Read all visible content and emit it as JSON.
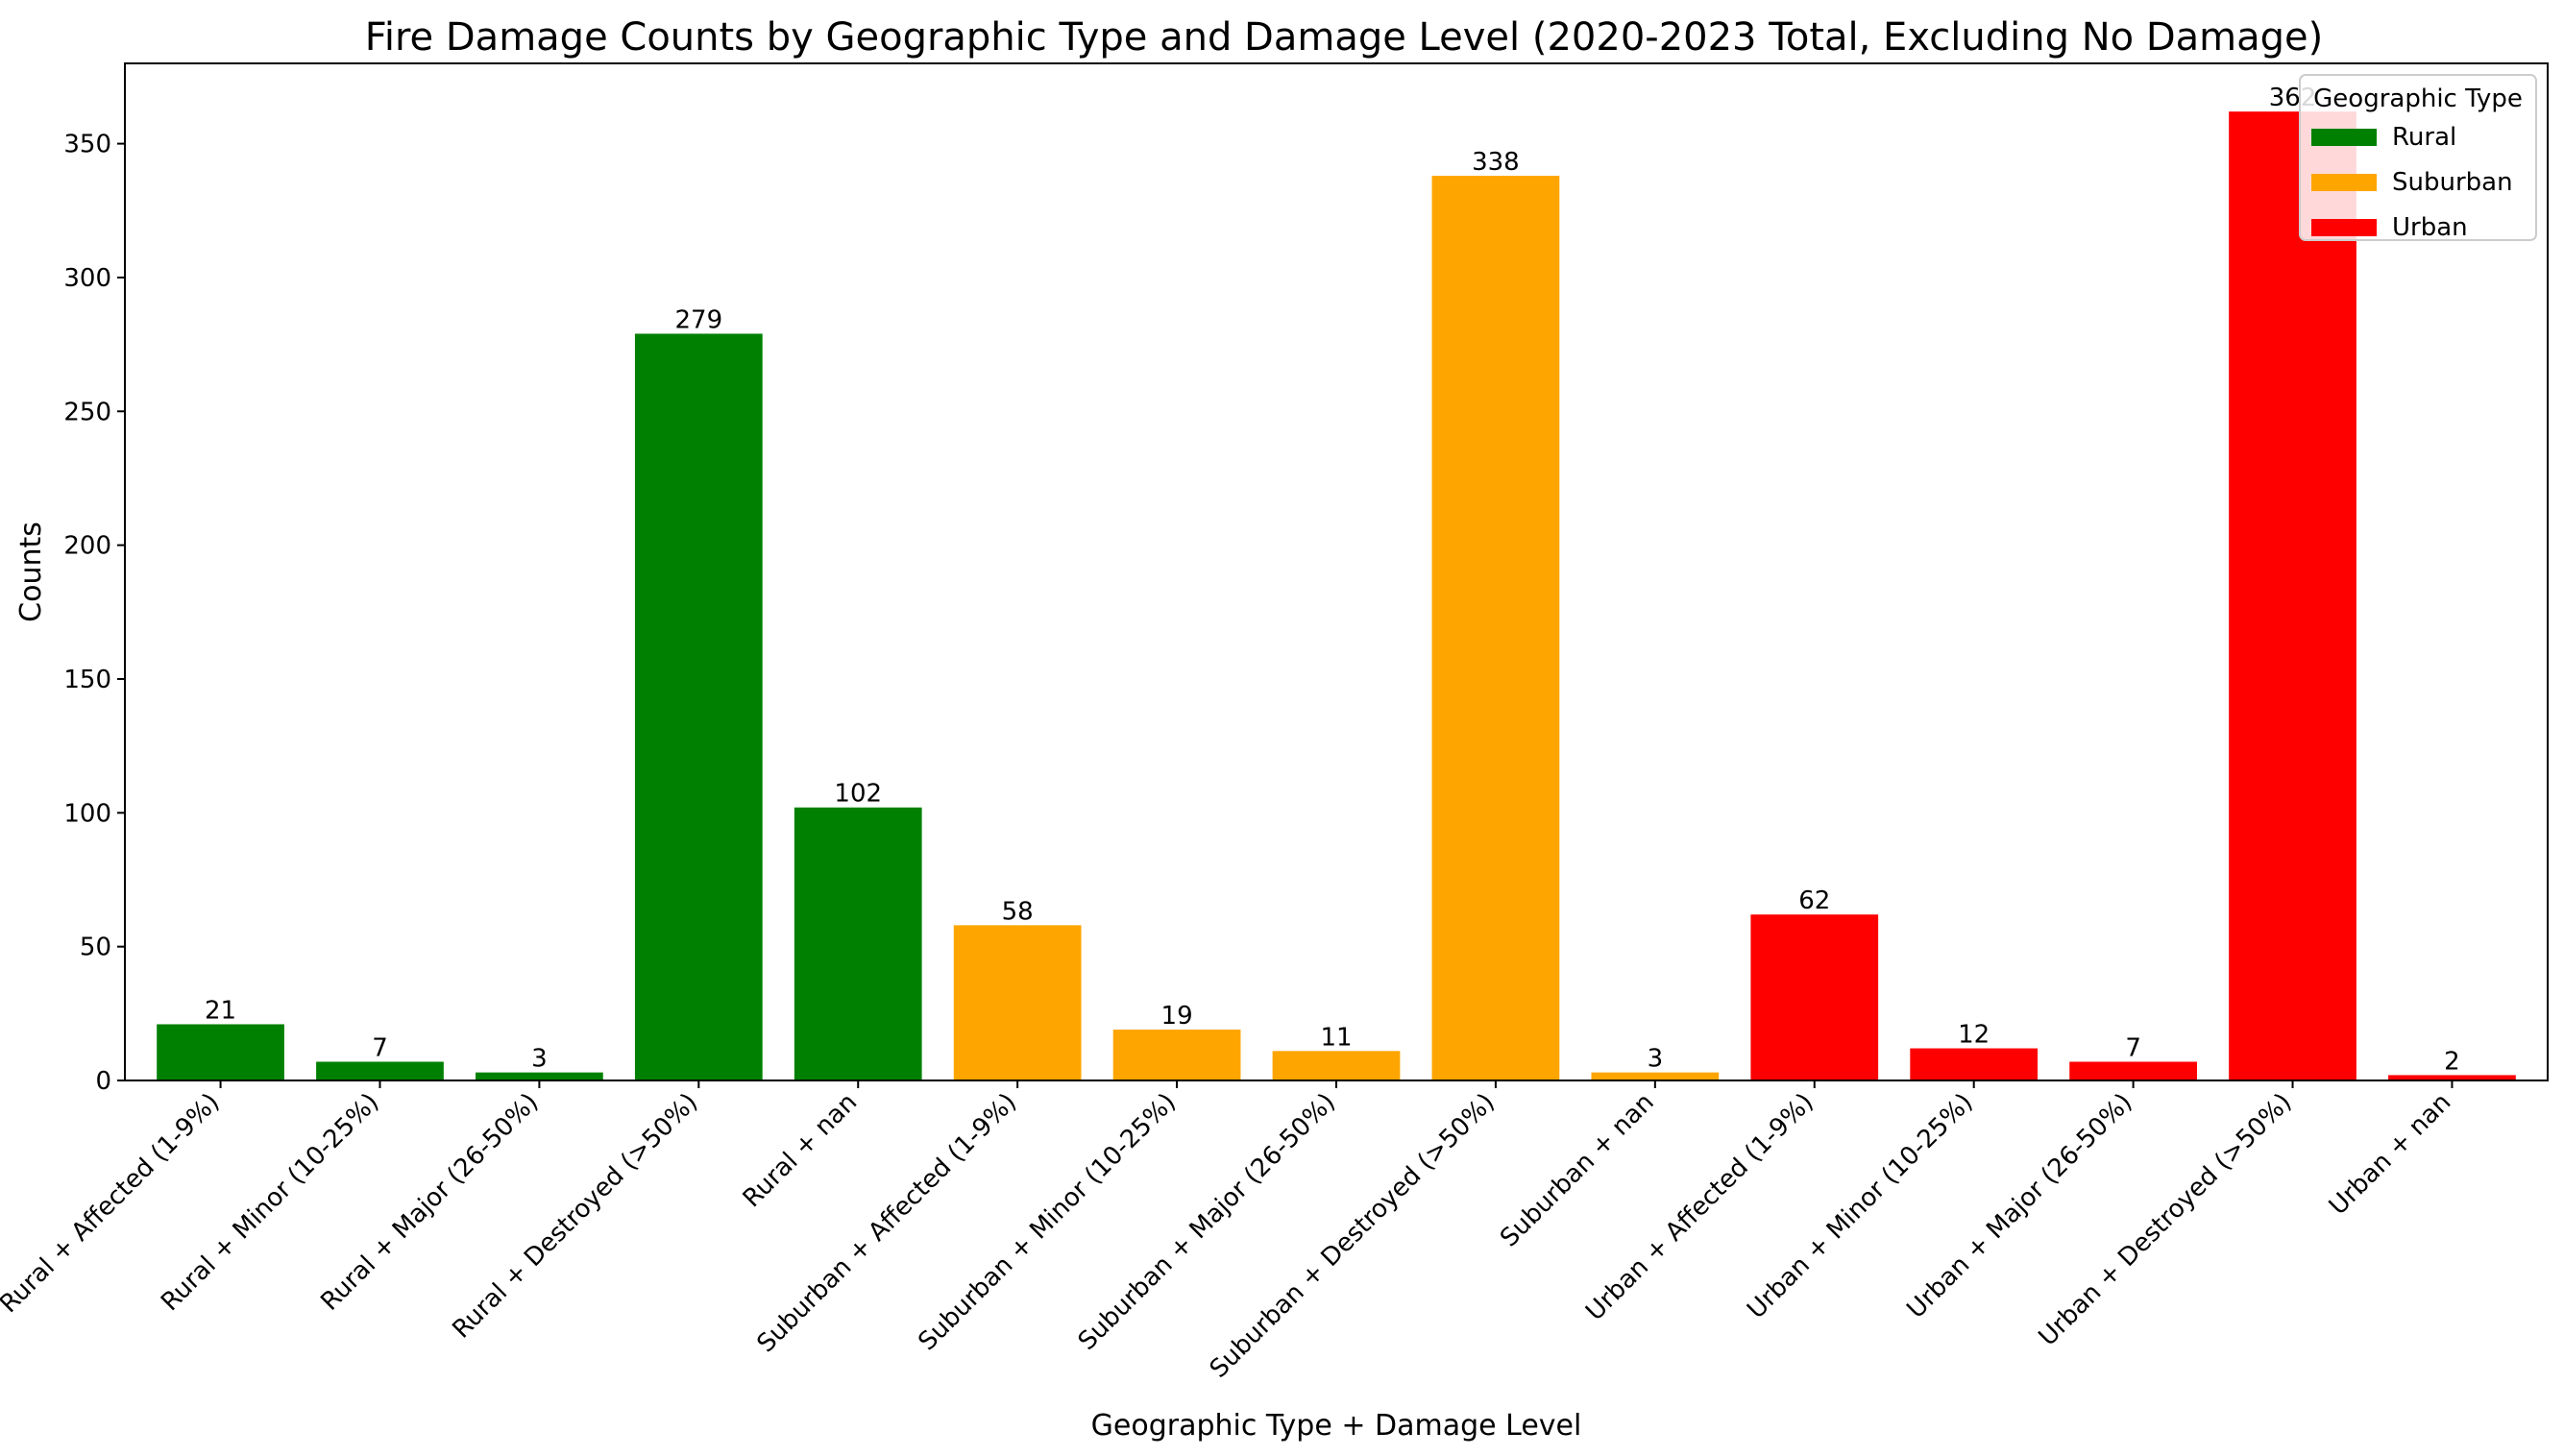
{
  "chart_data": {
    "type": "bar",
    "title": "Fire Damage Counts by Geographic Type and Damage Level (2020-2023 Total, Excluding No Damage)",
    "xlabel": "Geographic Type + Damage Level",
    "ylabel": "Counts",
    "ylim": [
      0,
      380
    ],
    "yticks": [
      0,
      50,
      100,
      150,
      200,
      250,
      300,
      350
    ],
    "grid": false,
    "legend": {
      "title": "Geographic Type",
      "placement": "top-right",
      "entries": [
        {
          "name": "Rural",
          "color": "#008000"
        },
        {
          "name": "Suburban",
          "color": "#FFA500"
        },
        {
          "name": "Urban",
          "color": "#FF0000"
        }
      ]
    },
    "categories": [
      "Rural + Affected (1-9%)",
      "Rural + Minor (10-25%)",
      "Rural + Major (26-50%)",
      "Rural + Destroyed (>50%)",
      "Rural + nan",
      "Suburban + Affected (1-9%)",
      "Suburban + Minor (10-25%)",
      "Suburban + Major (26-50%)",
      "Suburban + Destroyed (>50%)",
      "Suburban + nan",
      "Urban + Affected (1-9%)",
      "Urban + Minor (10-25%)",
      "Urban + Major (26-50%)",
      "Urban + Destroyed (>50%)",
      "Urban + nan"
    ],
    "values": [
      21,
      7,
      3,
      279,
      102,
      58,
      19,
      11,
      338,
      3,
      62,
      12,
      7,
      362,
      2
    ],
    "group": [
      "Rural",
      "Rural",
      "Rural",
      "Rural",
      "Rural",
      "Suburban",
      "Suburban",
      "Suburban",
      "Suburban",
      "Suburban",
      "Urban",
      "Urban",
      "Urban",
      "Urban",
      "Urban"
    ]
  }
}
